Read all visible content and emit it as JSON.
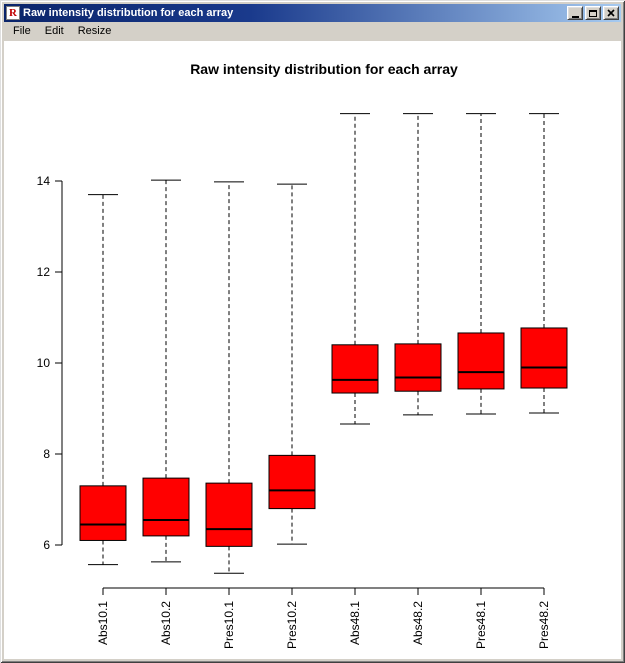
{
  "window": {
    "title": "Raw intensity distribution for each array",
    "icon": "r-graphics-icon",
    "controls": [
      "minimize",
      "maximize",
      "close"
    ]
  },
  "menu": {
    "items": [
      {
        "label": "File"
      },
      {
        "label": "Edit"
      },
      {
        "label": "Resize"
      }
    ]
  },
  "colors": {
    "box_fill": "#ff0000",
    "box_stroke": "#000000",
    "titlebar_gradient_start": "#0a246a",
    "titlebar_gradient_end": "#a6caf0",
    "chrome": "#d4d0c8",
    "plot_background": "#ffffff"
  },
  "chart_data": {
    "type": "boxplot",
    "title": "Raw intensity distribution for each array",
    "categories": [
      "Abs10.1",
      "Abs10.2",
      "Pres10.1",
      "Pres10.2",
      "Abs48.1",
      "Abs48.2",
      "Pres48.1",
      "Pres48.2"
    ],
    "boxes": [
      {
        "label": "Abs10.1",
        "whisker_low": 5.57,
        "q1": 6.1,
        "median": 6.45,
        "q3": 7.3,
        "whisker_high": 13.7
      },
      {
        "label": "Abs10.2",
        "whisker_low": 5.63,
        "q1": 6.2,
        "median": 6.55,
        "q3": 7.47,
        "whisker_high": 14.02
      },
      {
        "label": "Pres10.1",
        "whisker_low": 5.38,
        "q1": 5.97,
        "median": 6.35,
        "q3": 7.36,
        "whisker_high": 13.98
      },
      {
        "label": "Pres10.2",
        "whisker_low": 6.02,
        "q1": 6.8,
        "median": 7.2,
        "q3": 7.97,
        "whisker_high": 13.93
      },
      {
        "label": "Abs48.1",
        "whisker_low": 8.66,
        "q1": 9.34,
        "median": 9.63,
        "q3": 10.4,
        "whisker_high": 15.48
      },
      {
        "label": "Abs48.2",
        "whisker_low": 8.86,
        "q1": 9.38,
        "median": 9.68,
        "q3": 10.42,
        "whisker_high": 15.48
      },
      {
        "label": "Pres48.1",
        "whisker_low": 8.88,
        "q1": 9.43,
        "median": 9.8,
        "q3": 10.66,
        "whisker_high": 15.48
      },
      {
        "label": "Pres48.2",
        "whisker_low": 8.9,
        "q1": 9.45,
        "median": 9.9,
        "q3": 10.77,
        "whisker_high": 15.48
      }
    ],
    "y_ticks": [
      6,
      8,
      10,
      12,
      14
    ],
    "ylim": [
      5.05,
      15.9
    ],
    "grid": false,
    "whisker_style": "dashed",
    "x_label_rotation": -90,
    "legend": "none"
  }
}
